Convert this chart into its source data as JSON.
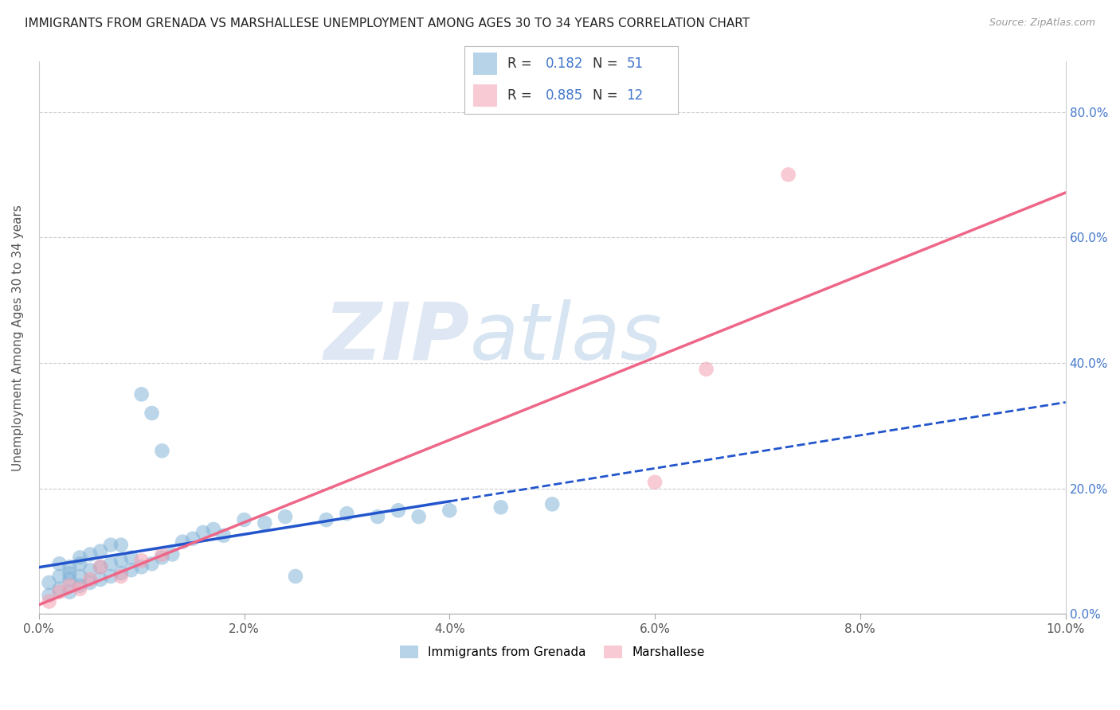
{
  "title": "IMMIGRANTS FROM GRENADA VS MARSHALLESE UNEMPLOYMENT AMONG AGES 30 TO 34 YEARS CORRELATION CHART",
  "source": "Source: ZipAtlas.com",
  "ylabel": "Unemployment Among Ages 30 to 34 years",
  "xlim": [
    0.0,
    0.1
  ],
  "ylim": [
    0.0,
    0.88
  ],
  "xticks": [
    0.0,
    0.02,
    0.04,
    0.06,
    0.08,
    0.1
  ],
  "xticklabels": [
    "0.0%",
    "2.0%",
    "4.0%",
    "6.0%",
    "8.0%",
    "10.0%"
  ],
  "yticks": [
    0.0,
    0.2,
    0.4,
    0.6,
    0.8
  ],
  "yticklabels": [
    "0.0%",
    "20.0%",
    "40.0%",
    "60.0%",
    "80.0%"
  ],
  "legend_labels": [
    "Immigrants from Grenada",
    "Marshallese"
  ],
  "R_blue": 0.182,
  "N_blue": 51,
  "R_pink": 0.885,
  "N_pink": 12,
  "blue_scatter_color": "#7BAFD4",
  "pink_scatter_color": "#F4A0B0",
  "blue_line_color": "#2255CC",
  "pink_line_color": "#EE6688",
  "axis_tick_color": "#4477CC",
  "blue_scatter_x": [
    0.001,
    0.001,
    0.002,
    0.002,
    0.002,
    0.003,
    0.003,
    0.003,
    0.003,
    0.004,
    0.004,
    0.004,
    0.004,
    0.005,
    0.005,
    0.005,
    0.006,
    0.006,
    0.006,
    0.007,
    0.007,
    0.007,
    0.008,
    0.008,
    0.008,
    0.009,
    0.009,
    0.01,
    0.01,
    0.011,
    0.011,
    0.012,
    0.012,
    0.013,
    0.014,
    0.015,
    0.016,
    0.017,
    0.018,
    0.02,
    0.022,
    0.024,
    0.025,
    0.028,
    0.03,
    0.033,
    0.035,
    0.037,
    0.04,
    0.045,
    0.05
  ],
  "blue_scatter_y": [
    0.03,
    0.05,
    0.04,
    0.06,
    0.08,
    0.035,
    0.055,
    0.065,
    0.075,
    0.045,
    0.06,
    0.08,
    0.09,
    0.05,
    0.07,
    0.095,
    0.055,
    0.075,
    0.1,
    0.06,
    0.08,
    0.11,
    0.065,
    0.085,
    0.11,
    0.07,
    0.09,
    0.075,
    0.35,
    0.08,
    0.32,
    0.09,
    0.26,
    0.095,
    0.115,
    0.12,
    0.13,
    0.135,
    0.125,
    0.15,
    0.145,
    0.155,
    0.06,
    0.15,
    0.16,
    0.155,
    0.165,
    0.155,
    0.165,
    0.17,
    0.175
  ],
  "pink_scatter_x": [
    0.001,
    0.002,
    0.003,
    0.004,
    0.005,
    0.006,
    0.008,
    0.01,
    0.012,
    0.06,
    0.065,
    0.073
  ],
  "pink_scatter_y": [
    0.02,
    0.035,
    0.045,
    0.04,
    0.055,
    0.075,
    0.06,
    0.085,
    0.095,
    0.21,
    0.39,
    0.7
  ]
}
